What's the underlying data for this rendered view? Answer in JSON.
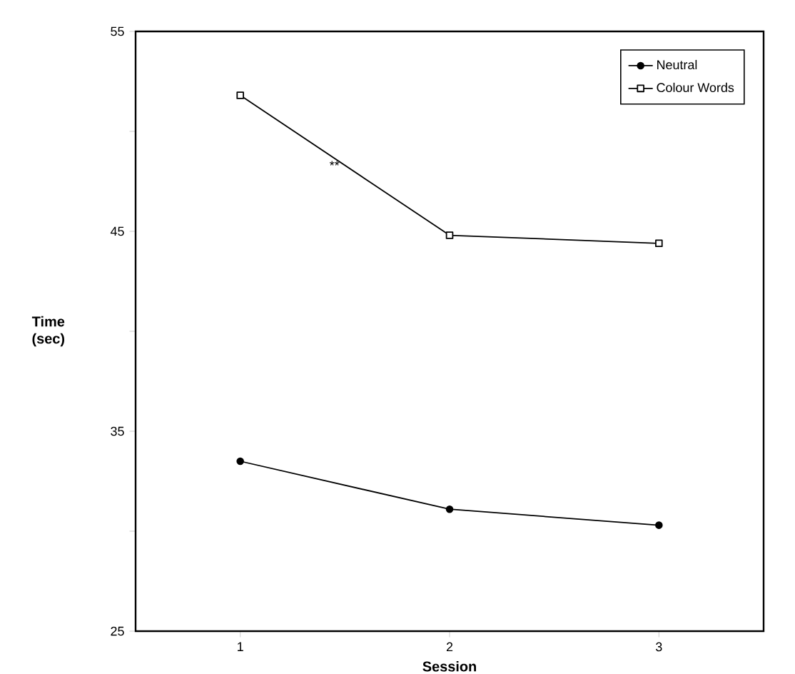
{
  "chart_data": {
    "type": "line",
    "xlabel": "Session",
    "ylabel": "Time (sec)",
    "categories": [
      "1",
      "2",
      "3"
    ],
    "series": [
      {
        "name": "Neutral",
        "color": "#000000",
        "marker": "circle",
        "values": [
          33.5,
          31.1,
          30.3
        ]
      },
      {
        "name": "Colour Words",
        "color": "#000000",
        "marker": "square",
        "values": [
          51.8,
          44.8,
          44.4
        ]
      }
    ],
    "ylim": [
      25,
      55
    ],
    "yticks": [
      25,
      {
        "value": 30,
        "label": null
      },
      35,
      {
        "value": 40,
        "label": null
      },
      45,
      {
        "value": 50,
        "label": null
      },
      55
    ],
    "annotations": [
      "**"
    ],
    "legend": "top right",
    "grid": false,
    "line_style": "solid"
  }
}
